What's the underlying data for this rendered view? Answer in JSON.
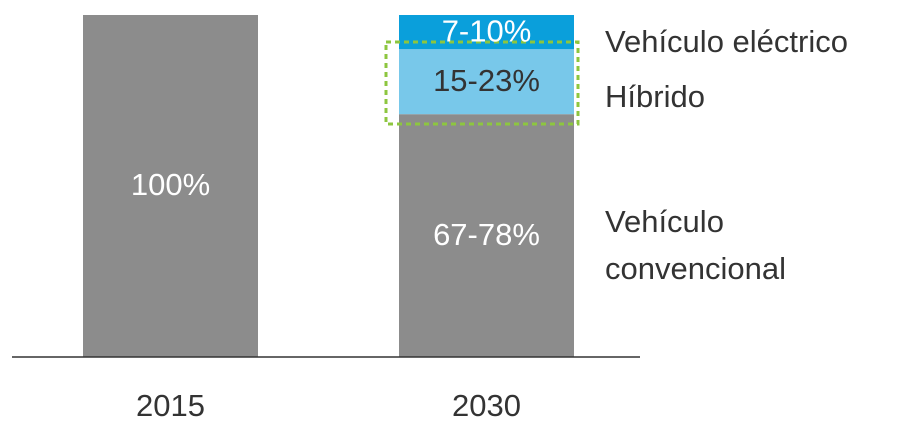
{
  "chart_data": {
    "type": "stacked_bar",
    "categories": [
      "2015",
      "2030"
    ],
    "series": [
      {
        "name": "Vehículo convencional",
        "color": "#8c8c8c",
        "values": [
          100,
          71
        ],
        "value_labels": [
          "100%",
          "67-78%"
        ]
      },
      {
        "name": "Híbrido",
        "color": "#78c8ea",
        "values": [
          null,
          19
        ],
        "value_labels": [
          null,
          "15-23%"
        ]
      },
      {
        "name": "Vehículo eléctrico",
        "color": "#0a9fdb",
        "values": [
          null,
          10
        ],
        "value_labels": [
          null,
          "7-10%"
        ]
      }
    ],
    "ylim": [
      0,
      100
    ]
  }
}
